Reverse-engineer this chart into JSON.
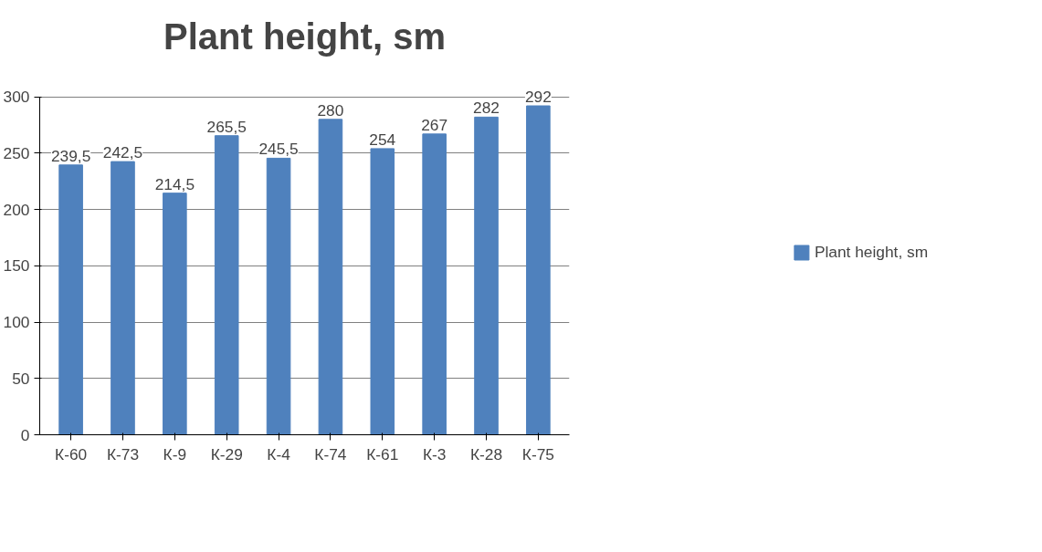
{
  "chart_data": {
    "type": "bar",
    "title": "Plant height, sm",
    "categories": [
      "К-60",
      "К-73",
      "К-9",
      "К-29",
      "К-4",
      "К-74",
      "К-61",
      "К-3",
      "К-28",
      "К-75"
    ],
    "series": [
      {
        "name": "Plant height, sm",
        "color": "#4f81bd",
        "values": [
          239.5,
          242.5,
          214.5,
          265.5,
          245.5,
          280,
          254,
          267,
          282,
          292
        ]
      }
    ],
    "value_labels": [
      "239,5",
      "242,5",
      "214,5",
      "265,5",
      "245,5",
      "280",
      "254",
      "267",
      "282",
      "292"
    ],
    "ylim": [
      0,
      300
    ],
    "yticks": [
      0,
      50,
      100,
      150,
      200,
      250,
      300
    ],
    "grid": "y",
    "legend": "right"
  }
}
